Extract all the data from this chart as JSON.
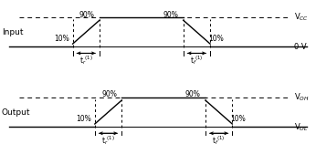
{
  "bg_color": "#ffffff",
  "line_color": "#000000",
  "label_input": "Input",
  "label_output": "Output",
  "label_vcc": "V$_{CC}$",
  "label_0v": "0 V",
  "label_voh": "V$_{OH}$",
  "label_vol": "V$_{OL}$",
  "label_90": "90%",
  "label_10": "10%",
  "label_tr": "t$_r$$^{(1)}$",
  "label_tf": "t$_f$$^{(1)}$",
  "figsize": [
    3.46,
    1.69
  ],
  "dpi": 100
}
